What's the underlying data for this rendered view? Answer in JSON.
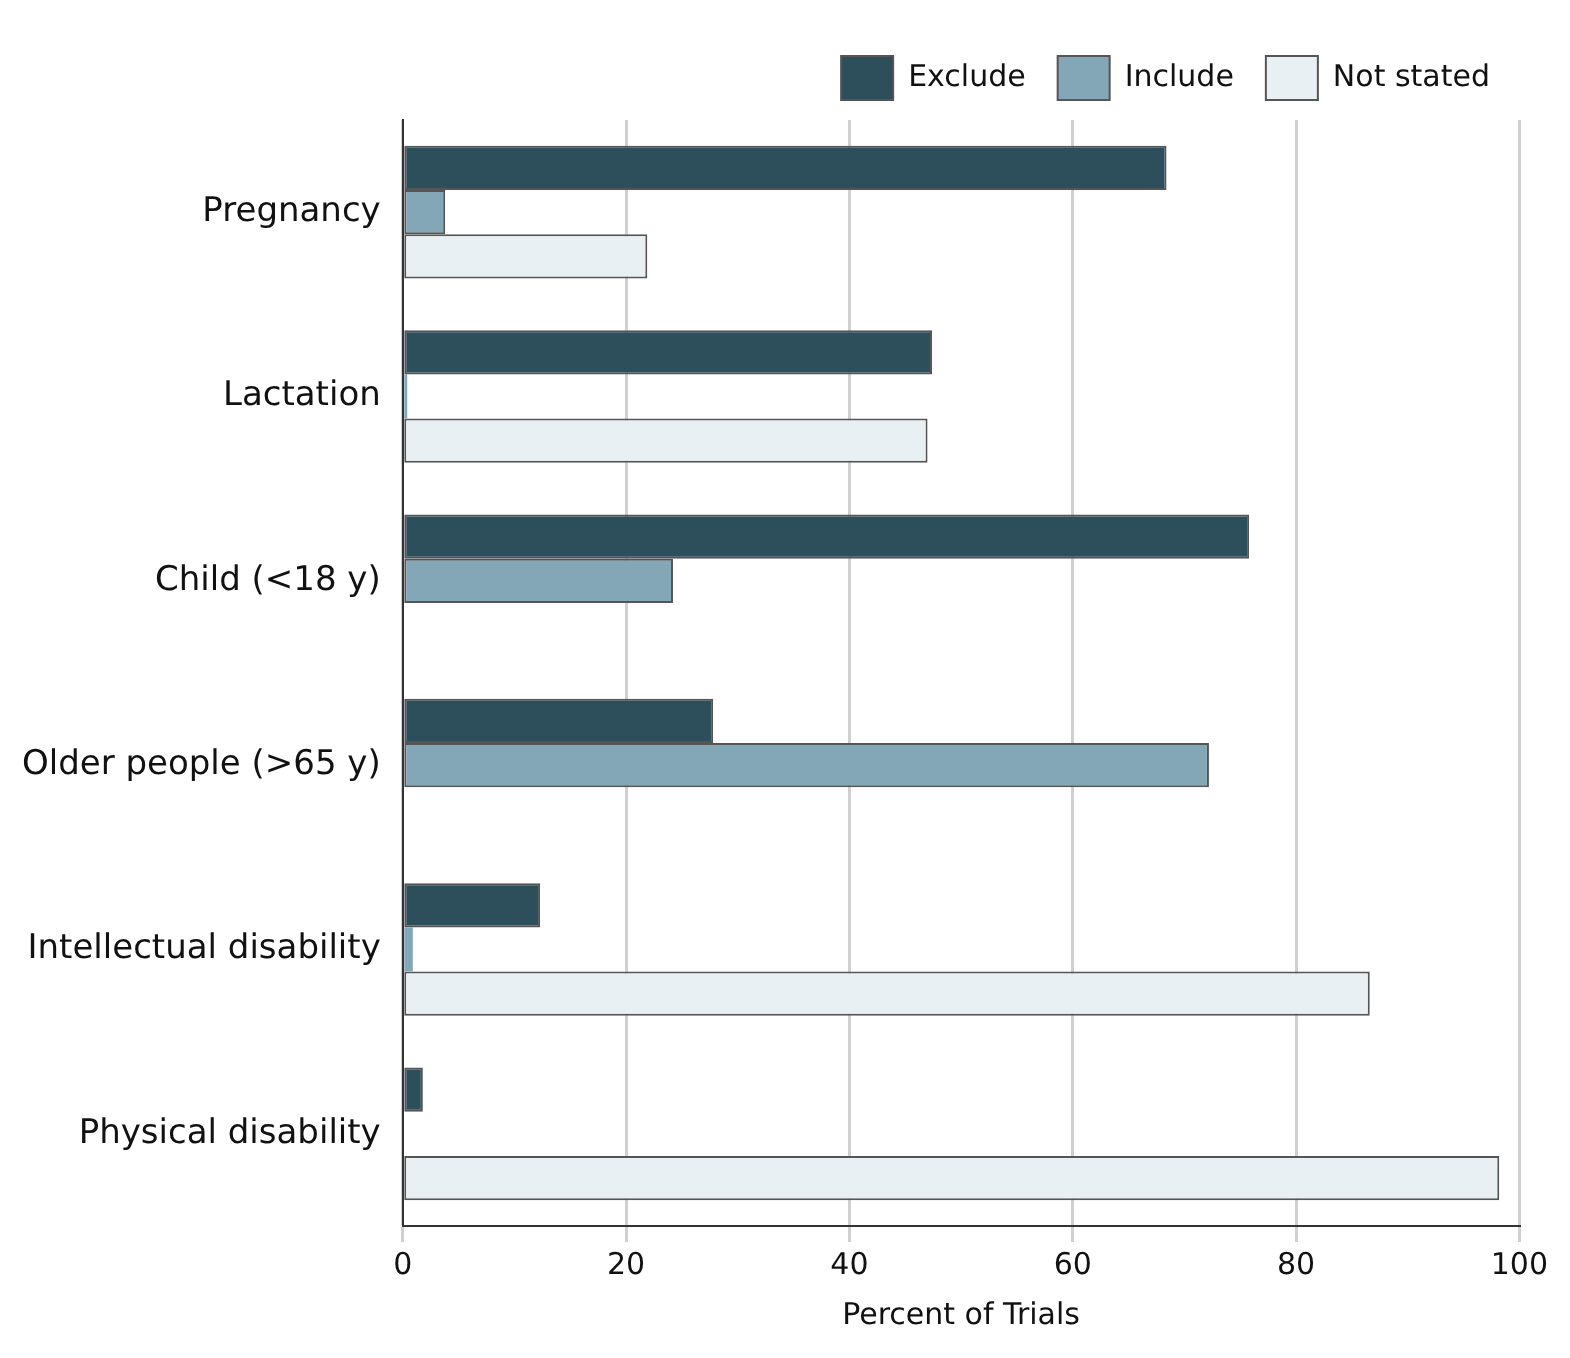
{
  "chart_data": {
    "type": "bar",
    "orientation": "horizontal",
    "xlabel": "Percent of Trials",
    "categories": [
      "Pregnancy",
      "Lactation",
      "Child (<18 y)",
      "Older people (>65 y)",
      "Intellectual disability",
      "Physical disability"
    ],
    "series": [
      {
        "name": "Exclude",
        "color": "#2d4f5c",
        "values": [
          68.4,
          47.4,
          75.8,
          27.8,
          12.3,
          1.8
        ]
      },
      {
        "name": "Include",
        "color": "#84a7b8",
        "values": [
          3.8,
          0.4,
          24.2,
          72.2,
          0.9,
          0
        ]
      },
      {
        "name": "Not stated",
        "color": "#e8f0f3",
        "values": [
          21.9,
          47.0,
          0,
          0,
          86.6,
          98.2
        ]
      }
    ],
    "xlim": [
      0,
      100
    ],
    "xticks": [
      0,
      20,
      40,
      60,
      80,
      100
    ],
    "grid": "x",
    "legend": "top right"
  }
}
